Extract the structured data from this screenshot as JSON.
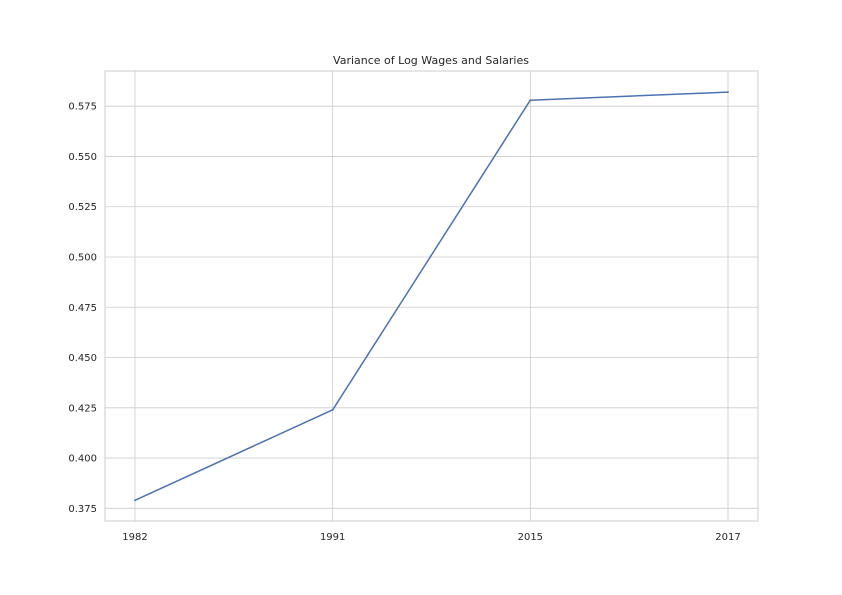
{
  "chart_data": {
    "type": "line",
    "title": "Variance of Log Wages and Salaries",
    "xlabel": "",
    "ylabel": "",
    "categories": [
      "1982",
      "1991",
      "2015",
      "2017"
    ],
    "series": [
      {
        "name": "Variance of Log Wages and Salaries",
        "values": [
          0.379,
          0.424,
          0.578,
          0.582
        ],
        "color": "#4c72b0"
      }
    ],
    "ylim": [
      0.3687,
      0.5925
    ],
    "yticks": [
      0.375,
      0.4,
      0.425,
      0.45,
      0.475,
      0.5,
      0.525,
      0.55,
      0.575
    ],
    "ytick_labels": [
      "0.375",
      "0.400",
      "0.425",
      "0.450",
      "0.475",
      "0.500",
      "0.525",
      "0.550",
      "0.575"
    ],
    "grid": true,
    "legend": "none",
    "colors": {
      "grid": "#cccccc",
      "text": "#262626",
      "background": "#ffffff"
    }
  }
}
